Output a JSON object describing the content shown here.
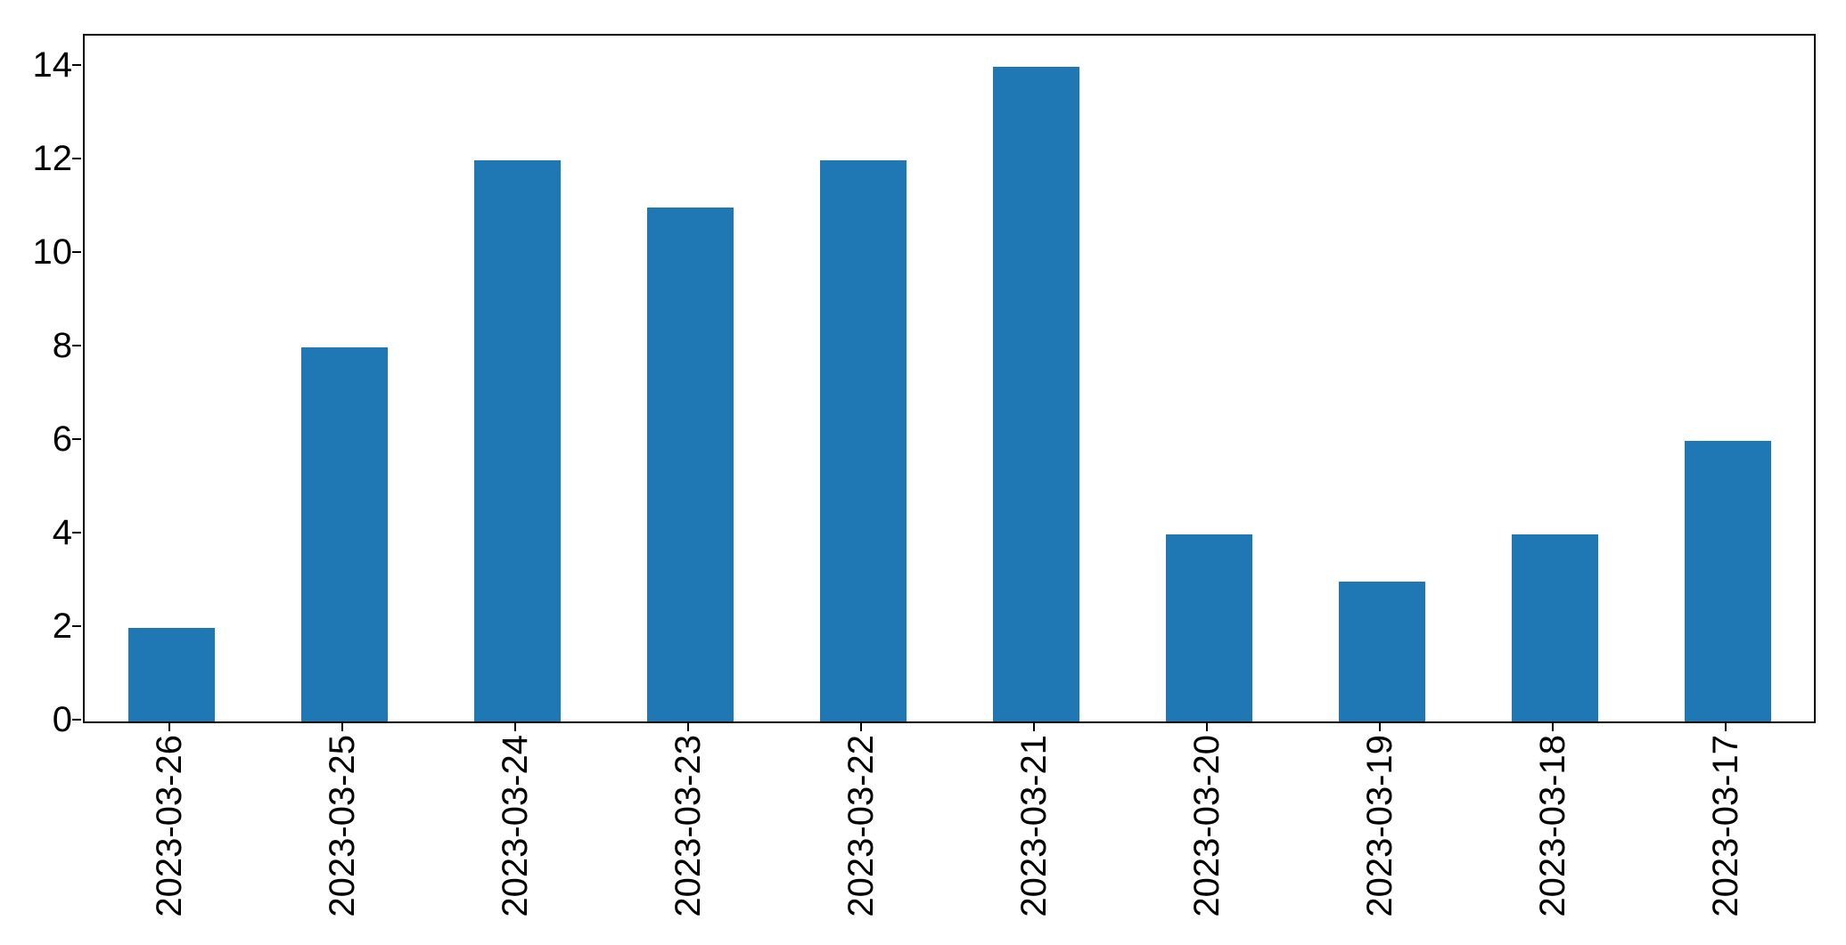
{
  "figure": {
    "background": "#ffffff"
  },
  "chart_data": {
    "type": "bar",
    "title": "",
    "xlabel": "",
    "ylabel": "",
    "categories": [
      "2023-03-26",
      "2023-03-25",
      "2023-03-24",
      "2023-03-23",
      "2023-03-22",
      "2023-03-21",
      "2023-03-20",
      "2023-03-19",
      "2023-03-18",
      "2023-03-17"
    ],
    "values": [
      2,
      8,
      12,
      11,
      12,
      14,
      4,
      3,
      4,
      6
    ],
    "bar_color": "#1f77b4",
    "axis_color": "#000000",
    "yticks": [
      0,
      2,
      4,
      6,
      8,
      10,
      12,
      14
    ],
    "ylim": [
      0,
      14.67
    ],
    "grid": false,
    "legend": null,
    "x_tick_rotation": 90,
    "bar_width_fraction": 0.5
  }
}
